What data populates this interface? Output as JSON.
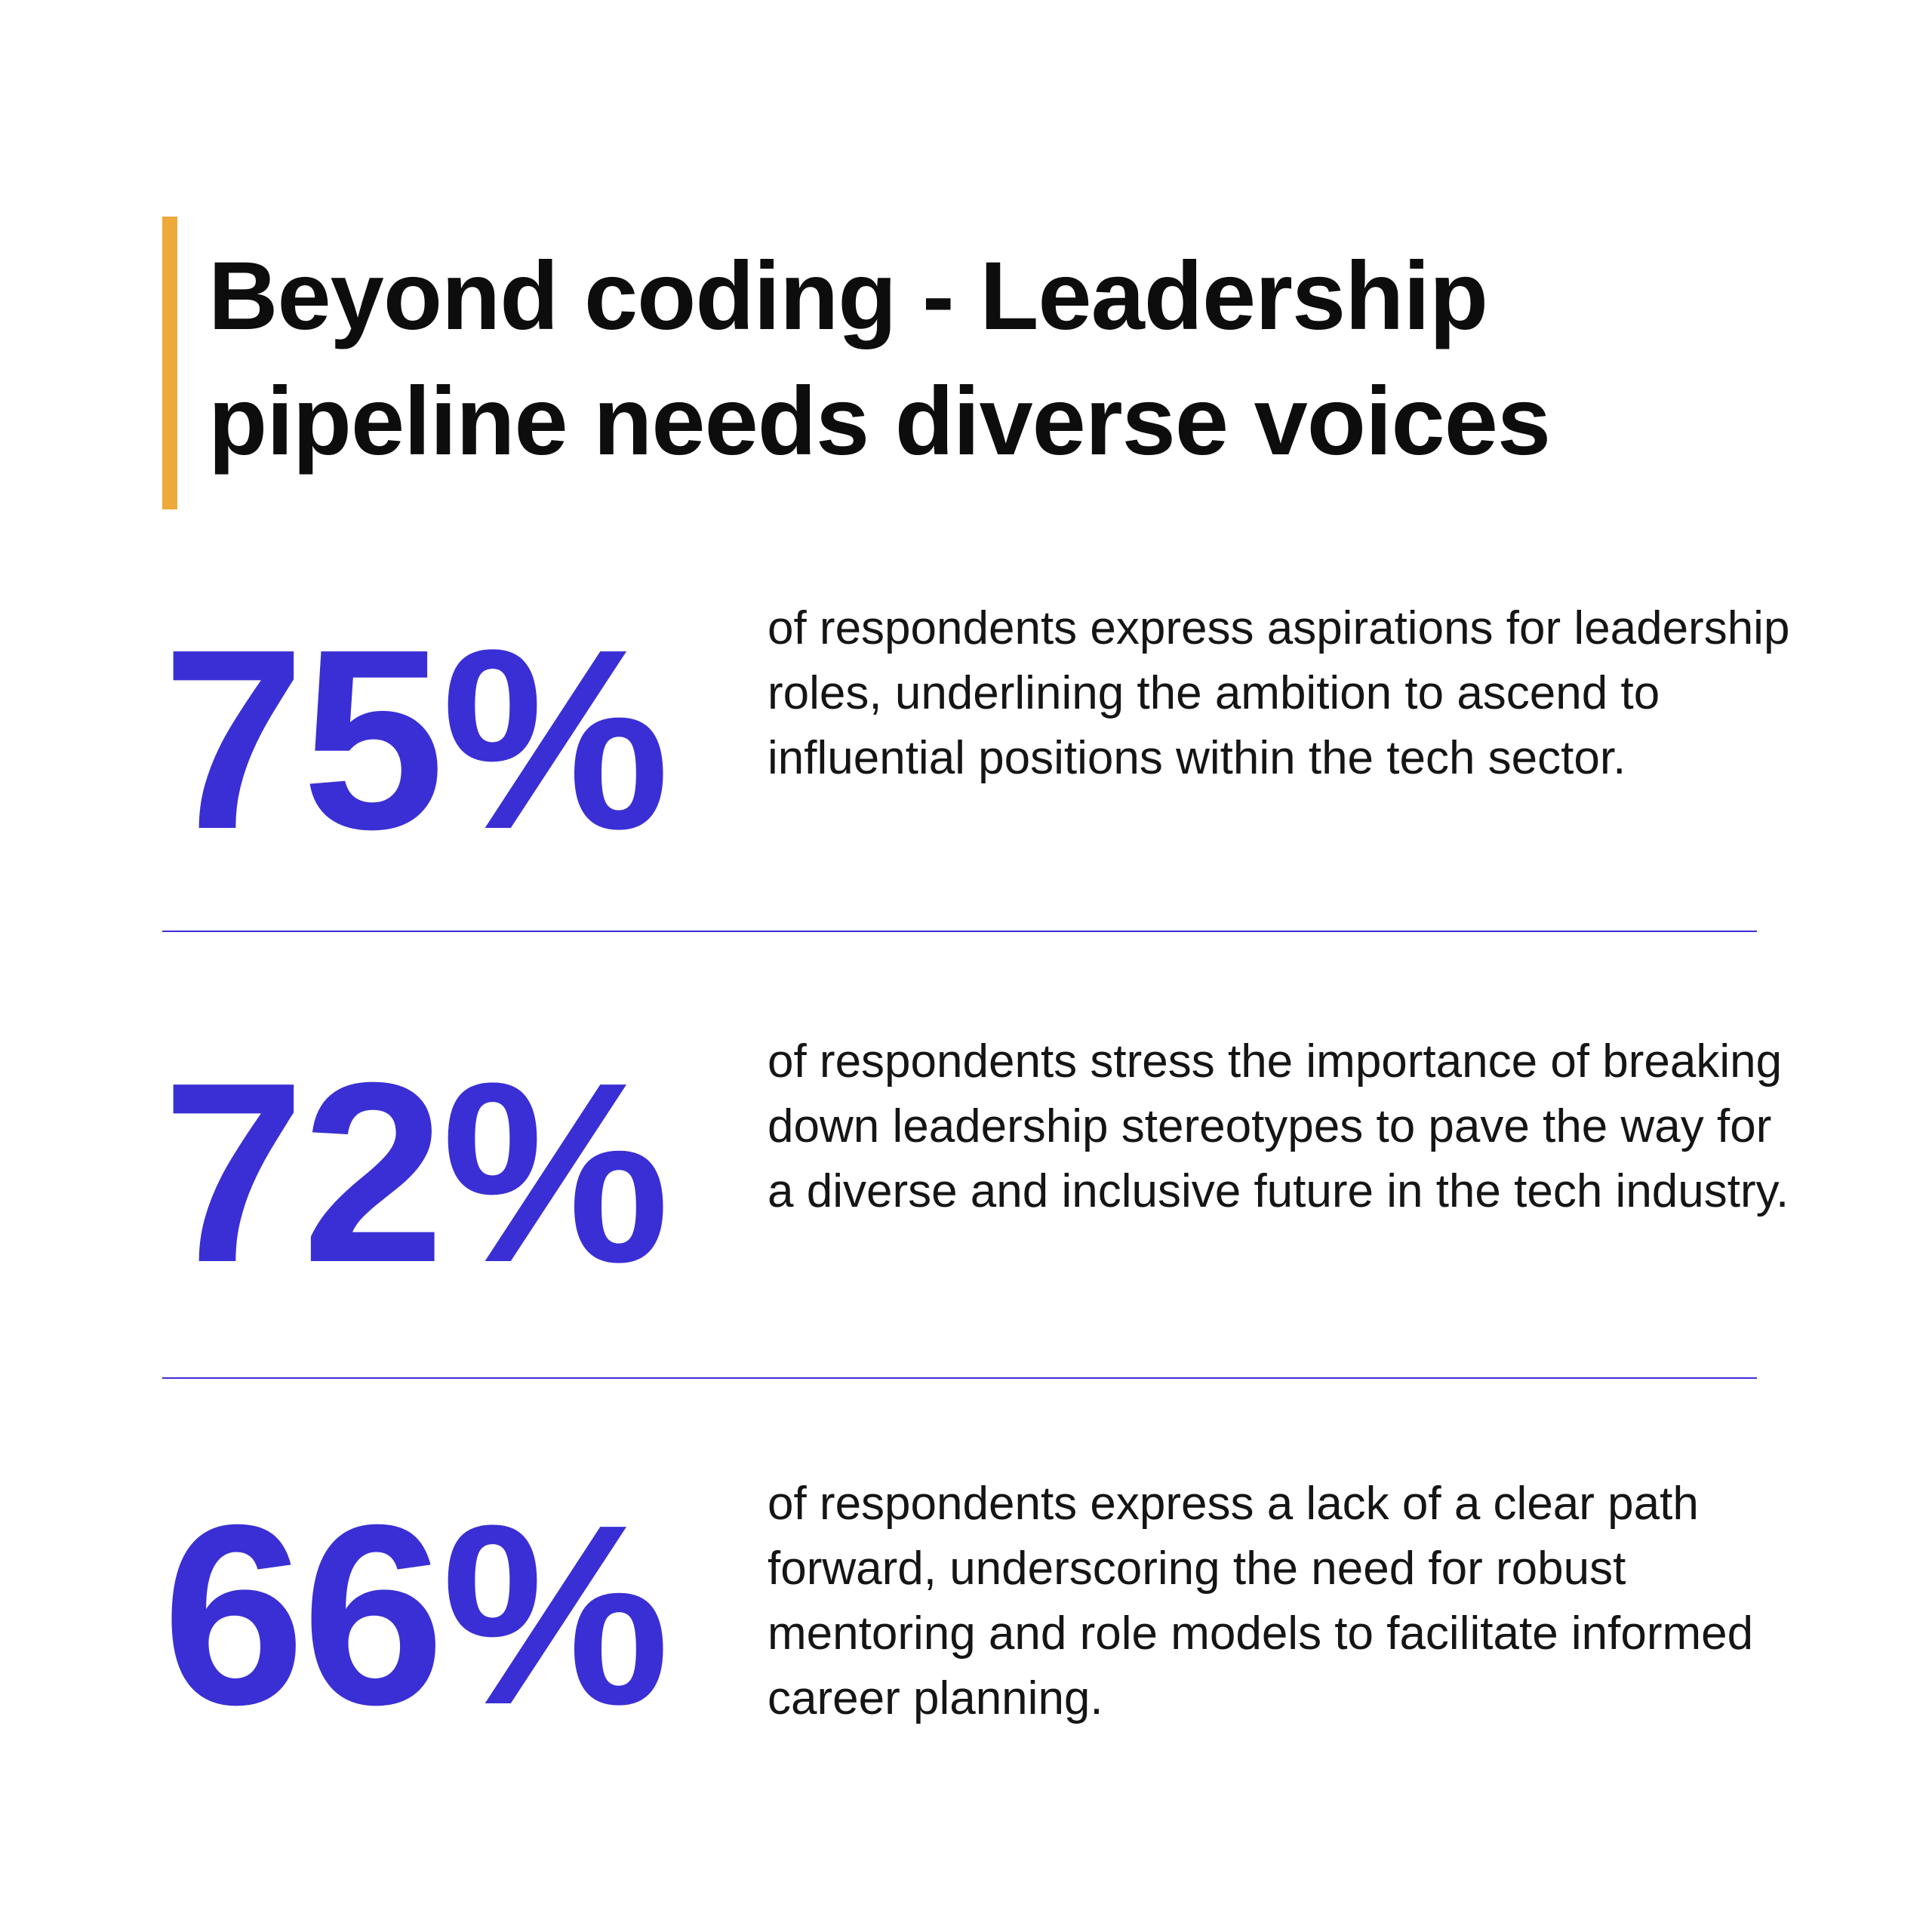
{
  "title": {
    "line1": "Beyond coding - Leadership",
    "line2": "pipeline needs diverse voices"
  },
  "colors": {
    "accent": "#eda93a",
    "stat": "#3a2fd4"
  },
  "stats": [
    {
      "value": "75%",
      "text": "of respondents express aspirations for leadership roles, underlining the ambition to ascend to influential positions within the tech sector."
    },
    {
      "value": "72%",
      "text": "of respondents stress the importance of breaking down leadership stereotypes to pave the way for a diverse and inclusive future in the tech industry."
    },
    {
      "value": "66%",
      "text": "of respondents express a lack of a clear path forward, underscoring the need for robust mentoring and role models to facilitate informed career planning."
    }
  ]
}
